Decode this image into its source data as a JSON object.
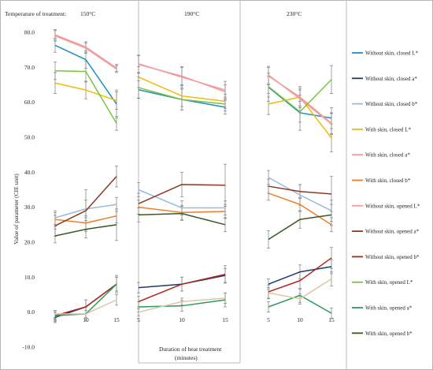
{
  "chart_data": {
    "type": "line",
    "title_prefix": "Temperature of treatment:",
    "panels": [
      "150°C",
      "190°C",
      "230°C"
    ],
    "x": [
      5,
      10,
      15
    ],
    "xlabel": "Duration of heat treatment (minutes)",
    "xlabel_lines": [
      "Duration of heat treatment",
      "(minutes)"
    ],
    "ylabel": "Value of parameter (CIE unit)",
    "ylim": [
      -10,
      80
    ],
    "yticks": [
      80.0,
      70.0,
      60.0,
      50.0,
      40.0,
      30.0,
      20.0,
      10.0,
      0.0,
      -10.0
    ],
    "ytick_labels": [
      "80.0",
      "70.0",
      "60.0",
      "50.0",
      "40.0",
      "30.0",
      "20.0",
      "10.0",
      "0.0",
      "-10.0"
    ],
    "xtick_labels": [
      "5",
      "10",
      "15"
    ],
    "legend_position": "right",
    "grid": false,
    "series": [
      {
        "name": "Without skin, closed L*",
        "color": "#1f8fbf",
        "values": [
          [
            76.3,
            72.2,
            59.5
          ],
          [
            63.6,
            60.8,
            58.6
          ],
          [
            64.3,
            57.0,
            55.5
          ]
        ],
        "errors": [
          [
            2.0,
            2.5,
            4.0
          ],
          [
            2.5,
            3.0,
            2.0
          ],
          [
            4.0,
            5.0,
            3.0
          ]
        ]
      },
      {
        "name": "Without skin, closed a*",
        "color": "#1b3a6b",
        "values": [
          [
            -1.5,
            1.5,
            8.0
          ],
          [
            7.0,
            8.0,
            10.5
          ],
          [
            8.0,
            11.5,
            13.0
          ]
        ],
        "errors": [
          [
            1.5,
            2.0,
            2.0
          ],
          [
            1.5,
            2.0,
            2.0
          ],
          [
            1.5,
            2.0,
            2.0
          ]
        ]
      },
      {
        "name": "Without skin, closed b*",
        "color": "#9ab8dc",
        "values": [
          [
            27.0,
            29.5,
            30.8
          ],
          [
            35.0,
            29.8,
            29.8
          ],
          [
            38.5,
            33.5,
            29.0
          ]
        ],
        "errors": [
          [
            2.0,
            2.5,
            2.0
          ],
          [
            2.0,
            2.0,
            2.0
          ],
          [
            2.0,
            3.0,
            3.0
          ]
        ]
      },
      {
        "name": "With skin, closed L*",
        "color": "#f5b90a",
        "values": [
          [
            65.5,
            63.5,
            60.5
          ],
          [
            67.2,
            61.8,
            60.3
          ],
          [
            59.5,
            61.5,
            49.8
          ]
        ],
        "errors": [
          [
            3.0,
            2.5,
            2.5
          ],
          [
            3.0,
            3.0,
            2.0
          ],
          [
            3.0,
            3.0,
            4.0
          ]
        ]
      },
      {
        "name": "With skin, closed a*",
        "color": "#f29898",
        "values": [
          [
            79.0,
            75.5,
            69.5
          ],
          [
            71.0,
            67.2,
            63.5
          ],
          [
            67.5,
            61.5,
            54.0
          ]
        ],
        "errors": [
          [
            1.5,
            1.5,
            1.0
          ],
          [
            2.5,
            3.0,
            2.5
          ],
          [
            2.5,
            2.5,
            3.0
          ]
        ]
      },
      {
        "name": "With skin, closed b*",
        "color": "#ee7d28",
        "values": [
          [
            26.5,
            25.5,
            27.5
          ],
          [
            30.0,
            28.5,
            28.8
          ],
          [
            34.0,
            30.8,
            25.0
          ]
        ],
        "errors": [
          [
            2.0,
            2.0,
            2.0
          ],
          [
            2.0,
            2.0,
            2.0
          ],
          [
            2.0,
            2.0,
            2.0
          ]
        ]
      },
      {
        "name": "Without skin, opened L*",
        "color": "#f49b9b",
        "values": [
          [
            79.3,
            75.8,
            69.8
          ],
          [
            70.8,
            67.5,
            63.0
          ],
          [
            67.8,
            61.0,
            53.8
          ]
        ],
        "errors": [
          [
            1.5,
            1.5,
            1.0
          ],
          [
            2.5,
            2.5,
            2.0
          ],
          [
            2.5,
            2.5,
            3.0
          ]
        ]
      },
      {
        "name": "Without skin, opened a*",
        "color": "#8b3a22",
        "values": [
          [
            24.7,
            29.0,
            38.8
          ],
          [
            31.0,
            36.5,
            36.3
          ],
          [
            36.0,
            34.5,
            33.8
          ]
        ],
        "errors": [
          [
            3.0,
            6.0,
            3.0
          ],
          [
            3.0,
            3.5,
            6.0
          ],
          [
            2.0,
            2.0,
            5.0
          ]
        ]
      },
      {
        "name": "Without skin, opened b*",
        "color": "#b3261e",
        "values": [
          [
            -1.0,
            1.5,
            8.0
          ],
          [
            3.0,
            8.0,
            10.8
          ],
          [
            5.8,
            9.0,
            15.5
          ]
        ],
        "errors": [
          [
            1.0,
            2.0,
            2.5
          ],
          [
            1.5,
            2.0,
            2.5
          ],
          [
            2.0,
            2.5,
            3.0
          ]
        ]
      },
      {
        "name": "With skin, opened L*",
        "color": "#7cc242",
        "values": [
          [
            69.0,
            68.8,
            54.0
          ],
          [
            64.2,
            60.8,
            59.5
          ],
          [
            64.5,
            57.3,
            66.5
          ]
        ],
        "errors": [
          [
            2.5,
            3.0,
            2.0
          ],
          [
            3.0,
            3.0,
            2.0
          ],
          [
            3.0,
            3.0,
            4.0
          ]
        ]
      },
      {
        "name": "With skin, opened a*",
        "color": "#2e9a57",
        "values": [
          [
            -1.0,
            -0.5,
            8.0
          ],
          [
            1.5,
            1.8,
            3.5
          ],
          [
            1.5,
            4.8,
            -0.3
          ]
        ],
        "errors": [
          [
            1.5,
            2.0,
            2.0
          ],
          [
            1.5,
            1.5,
            2.0
          ],
          [
            1.5,
            2.0,
            1.5
          ]
        ]
      },
      {
        "name": "With skin, opened b*",
        "color": "#3b5a22",
        "values": [
          [
            21.8,
            23.7,
            25.0
          ],
          [
            27.8,
            28.2,
            25.0
          ],
          [
            20.8,
            26.5,
            27.8
          ]
        ],
        "errors": [
          [
            2.0,
            2.5,
            4.5
          ],
          [
            2.0,
            2.0,
            2.0
          ],
          [
            2.5,
            2.5,
            3.0
          ]
        ]
      }
    ],
    "extra_series": [
      {
        "name": "",
        "color": "#d9c9a4",
        "values": [
          [
            -0.5,
            -0.5,
            3.5
          ],
          [
            0.0,
            3.0,
            4.0
          ],
          [
            5.5,
            3.8,
            9.5
          ]
        ],
        "errors": [
          [
            1.0,
            1.0,
            1.5
          ],
          [
            1.0,
            1.0,
            1.5
          ],
          [
            1.5,
            1.5,
            2.0
          ]
        ]
      }
    ]
  }
}
